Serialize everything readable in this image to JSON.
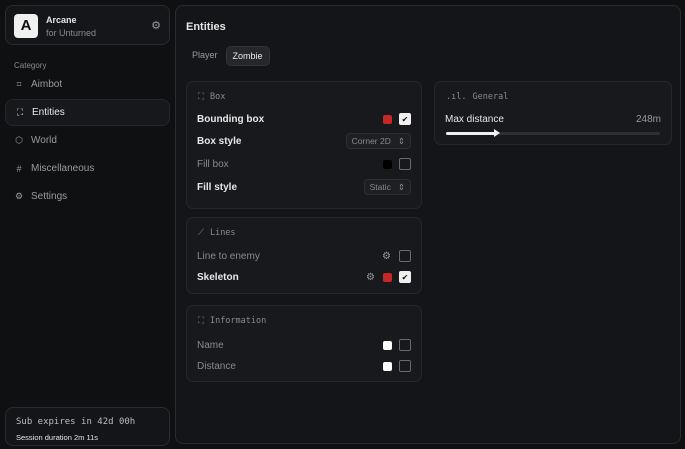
{
  "brand": {
    "name": "Arcane",
    "subtitle": "for Unturned",
    "logo_letter": "A"
  },
  "sidebar": {
    "category_label": "Category",
    "items": [
      {
        "label": "Aimbot",
        "icon": "crosshair-icon",
        "active": false
      },
      {
        "label": "Entities",
        "icon": "scan-face-icon",
        "active": true
      },
      {
        "label": "World",
        "icon": "cube-icon",
        "active": false
      },
      {
        "label": "Miscellaneous",
        "icon": "grid-icon",
        "active": false
      },
      {
        "label": "Settings",
        "icon": "gear-icon",
        "active": false
      }
    ]
  },
  "subscription": {
    "expires": "Sub expires in 42d 00h",
    "session": "Session duration 2m 11s"
  },
  "main": {
    "title": "Entities",
    "tabs": [
      {
        "label": "Player",
        "active": false
      },
      {
        "label": "Zombie",
        "active": true
      }
    ]
  },
  "box_card": {
    "title": "Box",
    "rows": {
      "bounding_box": "Bounding box",
      "box_style": "Box style",
      "box_style_value": "Corner 2D",
      "fill_box": "Fill box",
      "fill_style": "Fill style",
      "fill_style_value": "Static"
    }
  },
  "lines_card": {
    "title": "Lines",
    "line_to_enemy": "Line to enemy",
    "skeleton": "Skeleton"
  },
  "info_card": {
    "title": "Information",
    "name": "Name",
    "distance": "Distance"
  },
  "general_card": {
    "title": "General",
    "max_distance_label": "Max distance",
    "max_distance_value": "248m",
    "slider_percent": 24
  },
  "colors": {
    "accent_red": "#c62828",
    "black": "#000000",
    "white": "#ffffff"
  }
}
